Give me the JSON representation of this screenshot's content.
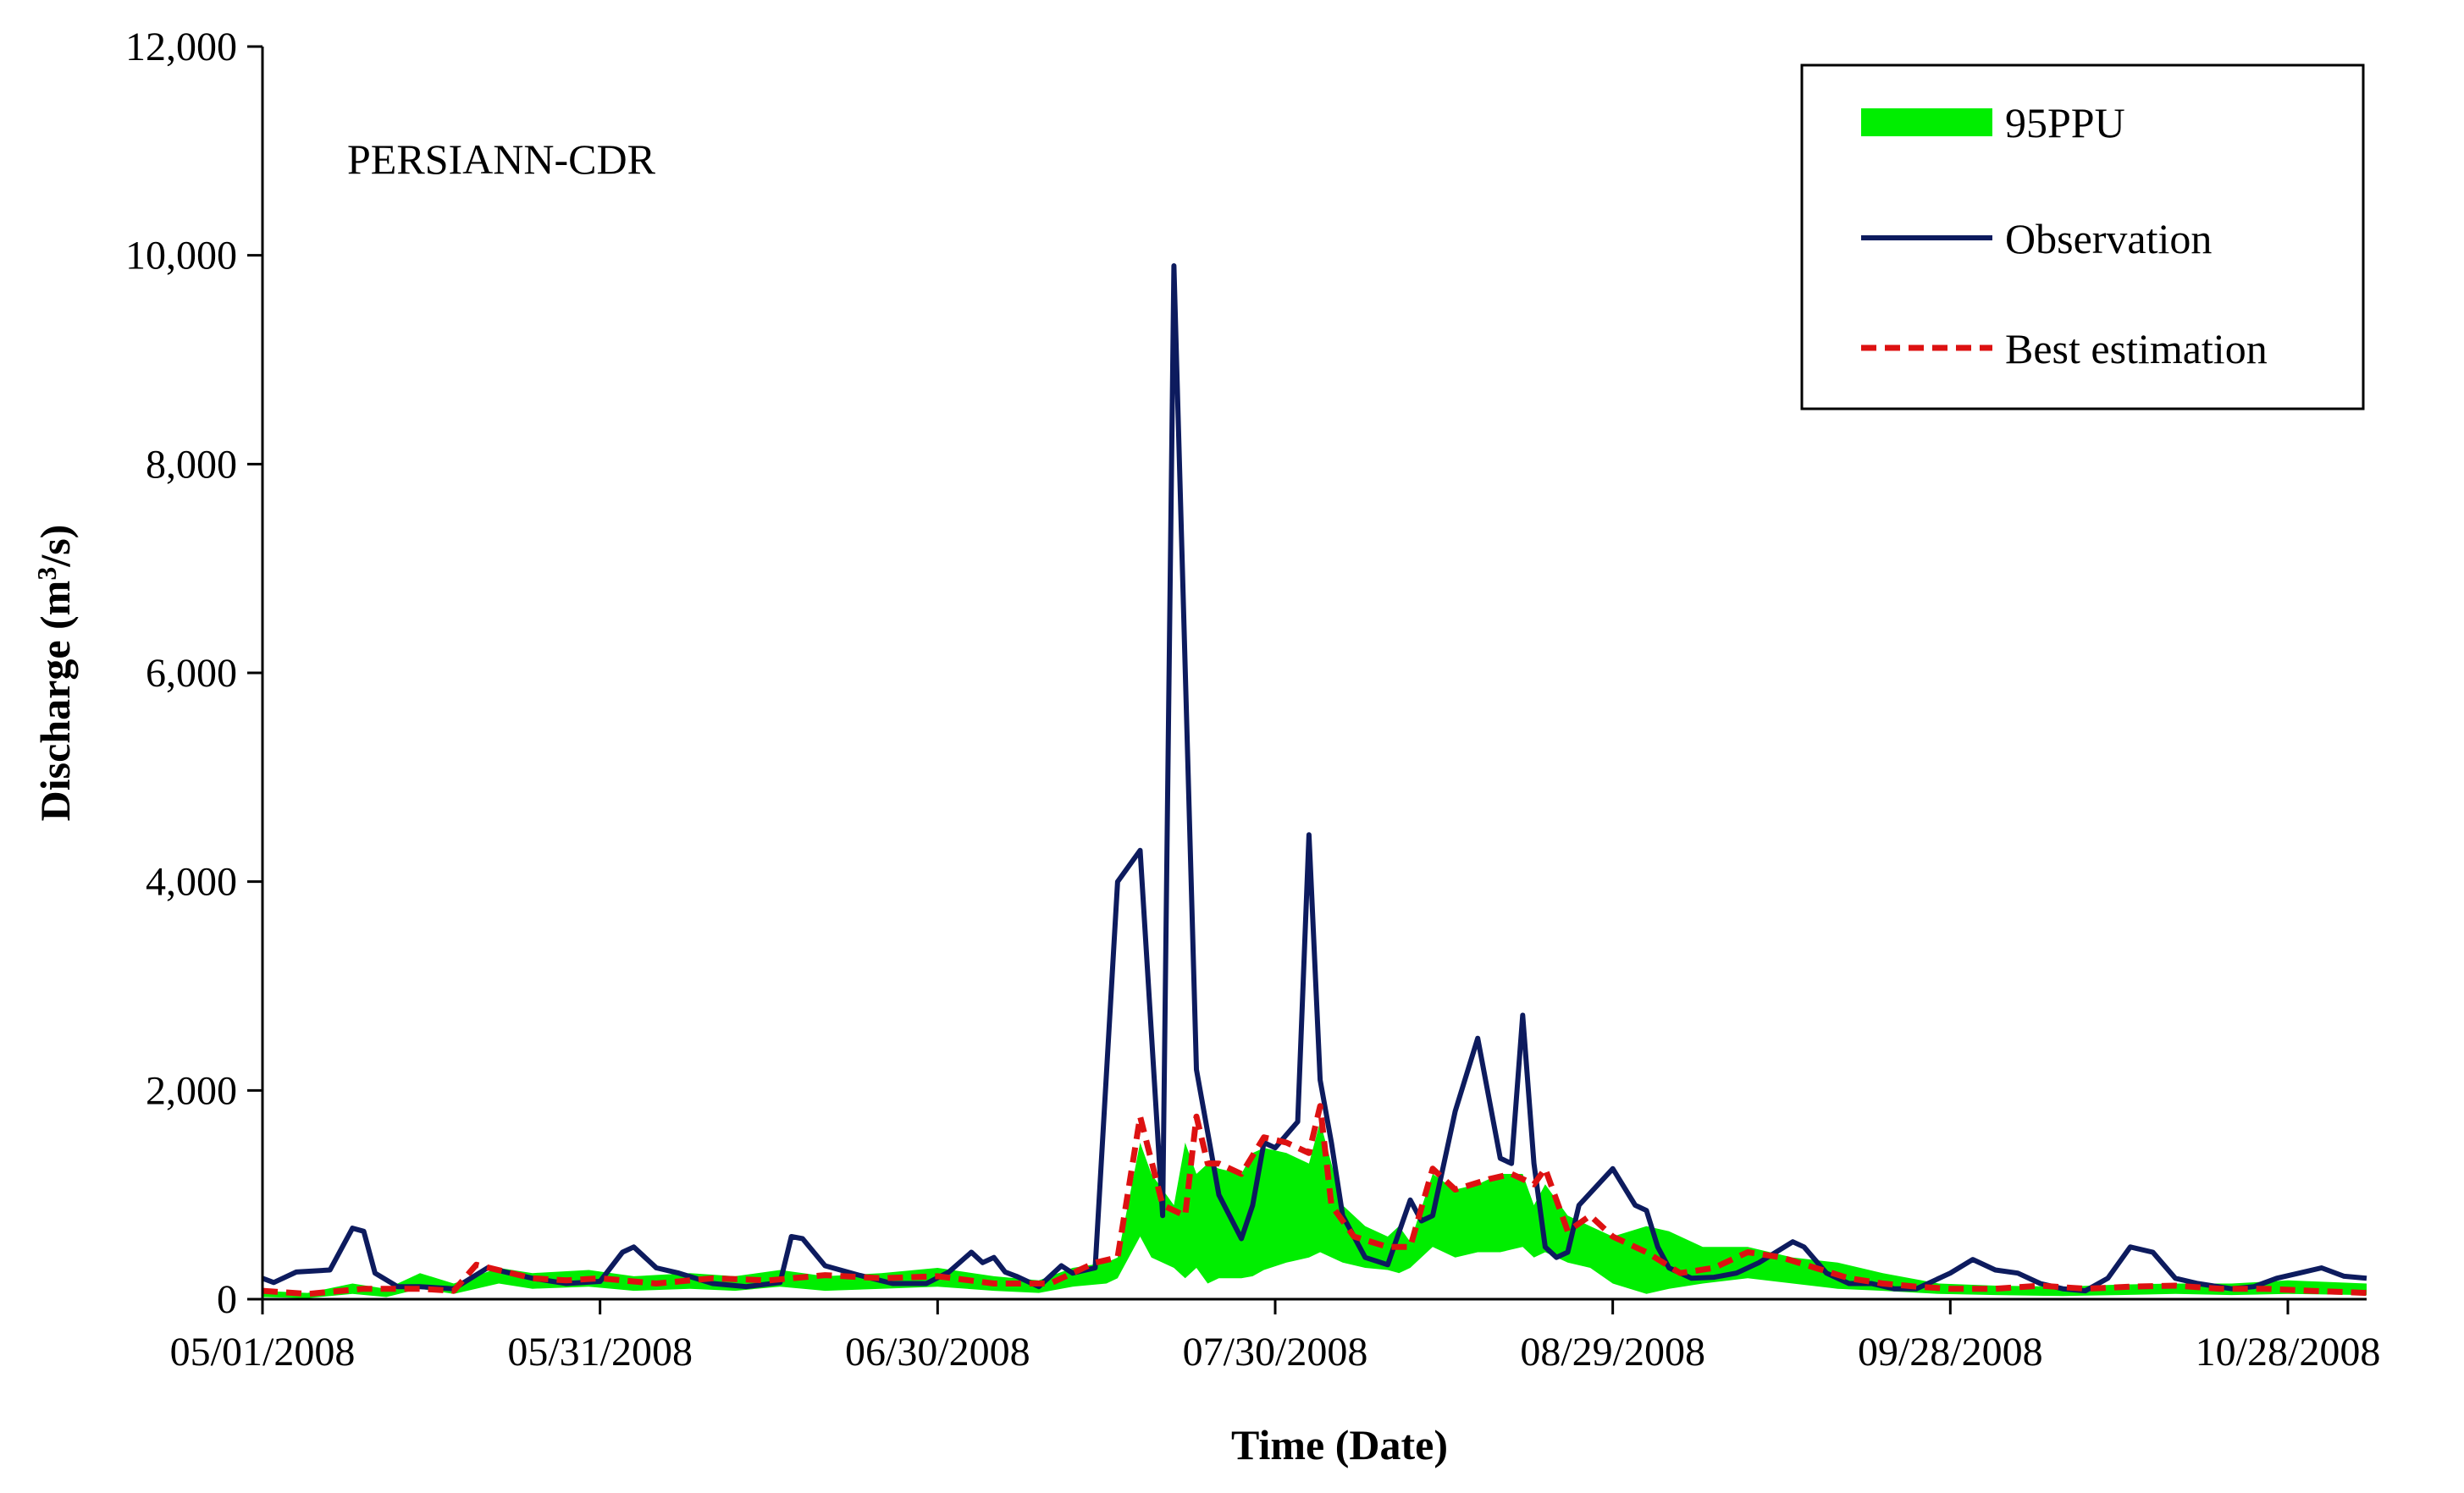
{
  "chart_data": {
    "type": "line",
    "annotation": "PERSIANN-CDR",
    "xlabel": "Time (Date)",
    "ylabel": "Discharge (m",
    "ylabel_sup": "3",
    "ylabel_end": "/s)",
    "x_start": "05/01/2008",
    "x_end": "11/04/2008",
    "xlim_days": [
      0,
      187
    ],
    "ylim": [
      0,
      12000
    ],
    "yticks": [
      0,
      2000,
      4000,
      6000,
      8000,
      10000,
      12000
    ],
    "ytick_labels": [
      "0",
      "2,000",
      "4,000",
      "6,000",
      "8,000",
      "10,000",
      "12,000"
    ],
    "xtick_labels": [
      "05/01/2008",
      "05/31/2008",
      "06/30/2008",
      "07/30/2008",
      "08/29/2008",
      "09/28/2008",
      "10/28/2008"
    ],
    "grid": false,
    "legend": {
      "position": "top-right",
      "entries": [
        "95PPU",
        "Observation",
        "Best estimation"
      ]
    },
    "colors": {
      "band": "#00ee00",
      "observation": "#0d1b5e",
      "best": "#dd1111"
    },
    "series": [
      {
        "name": "Observation",
        "x": [
          "05/01/2008",
          "05/02/2008",
          "05/04/2008",
          "05/07/2008",
          "05/09/2008",
          "05/10/2008",
          "05/11/2008",
          "05/13/2008",
          "05/15/2008",
          "05/18/2008",
          "05/21/2008",
          "05/23/2008",
          "05/25/2008",
          "05/28/2008",
          "05/31/2008",
          "06/02/2008",
          "06/03/2008",
          "06/05/2008",
          "06/07/2008",
          "06/10/2008",
          "06/13/2008",
          "06/16/2008",
          "06/17/2008",
          "06/18/2008",
          "06/20/2008",
          "06/23/2008",
          "06/26/2008",
          "06/29/2008",
          "07/01/2008",
          "07/03/2008",
          "07/04/2008",
          "07/05/2008",
          "07/06/2008",
          "07/07/2008",
          "07/09/2008",
          "07/11/2008",
          "07/12/2008",
          "07/14/2008",
          "07/16/2008",
          "07/18/2008",
          "07/20/2008",
          "07/21/2008",
          "07/23/2008",
          "07/25/2008",
          "07/27/2008",
          "07/28/2008",
          "07/29/2008",
          "07/30/2008",
          "08/01/2008",
          "08/02/2008",
          "08/03/2008",
          "08/04/2008",
          "08/05/2008",
          "08/07/2008",
          "08/09/2008",
          "08/11/2008",
          "08/12/2008",
          "08/13/2008",
          "08/15/2008",
          "08/17/2008",
          "08/19/2008",
          "08/20/2008",
          "08/21/2008",
          "08/22/2008",
          "08/23/2008",
          "08/24/2008",
          "08/25/2008",
          "08/26/2008",
          "08/29/2008",
          "08/31/2008",
          "09/01/2008",
          "09/02/2008",
          "09/03/2008",
          "09/05/2008",
          "09/07/2008",
          "09/09/2008",
          "09/11/2008",
          "09/14/2008",
          "09/15/2008",
          "09/17/2008",
          "09/19/2008",
          "09/21/2008",
          "09/23/2008",
          "09/25/2008",
          "09/28/2008",
          "09/30/2008",
          "10/02/2008",
          "10/04/2008",
          "10/06/2008",
          "10/08/2008",
          "10/10/2008",
          "10/12/2008",
          "10/14/2008",
          "10/16/2008",
          "10/18/2008",
          "10/20/2008",
          "10/23/2008",
          "10/25/2008",
          "10/27/2008",
          "10/29/2008",
          "10/31/2008",
          "11/02/2008",
          "11/04/2008"
        ],
        "values": [
          200,
          160,
          260,
          280,
          680,
          650,
          250,
          120,
          120,
          100,
          300,
          250,
          200,
          150,
          170,
          450,
          500,
          300,
          250,
          150,
          120,
          160,
          600,
          580,
          320,
          230,
          150,
          150,
          260,
          450,
          350,
          400,
          260,
          220,
          120,
          320,
          250,
          300,
          4000,
          4300,
          800,
          9900,
          2200,
          1000,
          580,
          900,
          1500,
          1450,
          1700,
          4450,
          2100,
          1500,
          800,
          400,
          330,
          950,
          750,
          800,
          1800,
          2500,
          1350,
          1300,
          2720,
          1300,
          500,
          400,
          450,
          900,
          1250,
          900,
          850,
          500,
          300,
          200,
          210,
          250,
          350,
          550,
          500,
          250,
          150,
          150,
          100,
          100,
          250,
          380,
          280,
          250,
          150,
          100,
          80,
          200,
          500,
          450,
          200,
          150,
          100,
          120,
          200,
          250,
          300,
          220,
          200
        ]
      },
      {
        "name": "Best estimation",
        "x": [
          "05/01/2008",
          "05/05/2008",
          "05/10/2008",
          "05/15/2008",
          "05/18/2008",
          "05/20/2008",
          "05/25/2008",
          "05/28/2008",
          "05/31/2008",
          "06/05/2008",
          "06/10/2008",
          "06/15/2008",
          "06/20/2008",
          "06/25/2008",
          "06/30/2008",
          "07/05/2008",
          "07/10/2008",
          "07/14/2008",
          "07/16/2008",
          "07/18/2008",
          "07/20/2008",
          "07/22/2008",
          "07/23/2008",
          "07/24/2008",
          "07/25/2008",
          "07/27/2008",
          "07/29/2008",
          "07/31/2008",
          "08/02/2008",
          "08/03/2008",
          "08/04/2008",
          "08/06/2008",
          "08/09/2008",
          "08/11/2008",
          "08/13/2008",
          "08/15/2008",
          "08/18/2008",
          "08/20/2008",
          "08/22/2008",
          "08/23/2008",
          "08/25/2008",
          "08/27/2008",
          "08/29/2008",
          "09/01/2008",
          "09/04/2008",
          "09/07/2008",
          "09/10/2008",
          "09/13/2008",
          "09/16/2008",
          "09/19/2008",
          "09/22/2008",
          "09/25/2008",
          "09/28/2008",
          "10/02/2008",
          "10/06/2008",
          "10/10/2008",
          "10/14/2008",
          "10/18/2008",
          "10/22/2008",
          "10/26/2008",
          "10/30/2008",
          "11/04/2008"
        ],
        "values": [
          80,
          50,
          100,
          100,
          80,
          330,
          200,
          180,
          200,
          150,
          200,
          180,
          230,
          200,
          220,
          150,
          150,
          350,
          400,
          1750,
          900,
          800,
          1750,
          1300,
          1300,
          1200,
          1550,
          1500,
          1400,
          1850,
          900,
          600,
          500,
          500,
          1250,
          1050,
          1150,
          1200,
          1100,
          1250,
          650,
          800,
          600,
          450,
          250,
          300,
          450,
          400,
          300,
          200,
          150,
          120,
          100,
          100,
          130,
          100,
          120,
          130,
          100,
          100,
          80,
          60
        ]
      }
    ],
    "band": {
      "name": "95PPU",
      "x": [
        "05/01/2008",
        "05/05/2008",
        "05/09/2008",
        "05/12/2008",
        "05/15/2008",
        "05/18/2008",
        "05/22/2008",
        "05/25/2008",
        "05/30/2008",
        "06/03/2008",
        "06/08/2008",
        "06/12/2008",
        "06/16/2008",
        "06/20/2008",
        "06/25/2008",
        "06/30/2008",
        "07/05/2008",
        "07/09/2008",
        "07/12/2008",
        "07/15/2008",
        "07/16/2008",
        "07/18/2008",
        "07/19/2008",
        "07/21/2008",
        "07/22/2008",
        "07/23/2008",
        "07/24/2008",
        "07/25/2008",
        "07/27/2008",
        "07/28/2008",
        "07/29/2008",
        "07/31/2008",
        "08/02/2008",
        "08/03/2008",
        "08/05/2008",
        "08/07/2008",
        "08/09/2008",
        "08/10/2008",
        "08/11/2008",
        "08/13/2008",
        "08/15/2008",
        "08/17/2008",
        "08/19/2008",
        "08/21/2008",
        "08/22/2008",
        "08/23/2008",
        "08/25/2008",
        "08/27/2008",
        "08/29/2008",
        "09/01/2008",
        "09/03/2008",
        "09/06/2008",
        "09/10/2008",
        "09/14/2008",
        "09/18/2008",
        "09/22/2008",
        "09/27/2008",
        "10/02/2008",
        "10/08/2008",
        "10/13/2008",
        "10/18/2008",
        "10/23/2008",
        "10/28/2008",
        "11/04/2008"
      ],
      "upper": [
        80,
        60,
        150,
        100,
        250,
        150,
        300,
        250,
        280,
        220,
        250,
        220,
        280,
        220,
        250,
        300,
        220,
        180,
        300,
        350,
        400,
        1500,
        1200,
        900,
        1500,
        1200,
        1300,
        1250,
        1200,
        1400,
        1450,
        1400,
        1300,
        1700,
        900,
        700,
        600,
        700,
        550,
        1200,
        1050,
        1100,
        1200,
        1200,
        900,
        1100,
        800,
        700,
        600,
        700,
        650,
        500,
        500,
        400,
        350,
        250,
        150,
        130,
        120,
        140,
        150,
        150,
        180,
        150
      ],
      "lower": [
        20,
        10,
        50,
        20,
        100,
        50,
        150,
        100,
        120,
        80,
        100,
        80,
        120,
        80,
        100,
        120,
        80,
        60,
        120,
        150,
        200,
        600,
        400,
        300,
        200,
        300,
        150,
        200,
        200,
        220,
        280,
        350,
        400,
        450,
        350,
        300,
        280,
        250,
        300,
        500,
        400,
        450,
        450,
        500,
        400,
        450,
        350,
        300,
        150,
        50,
        100,
        150,
        200,
        150,
        100,
        80,
        50,
        40,
        30,
        40,
        50,
        40,
        50,
        40
      ]
    }
  }
}
